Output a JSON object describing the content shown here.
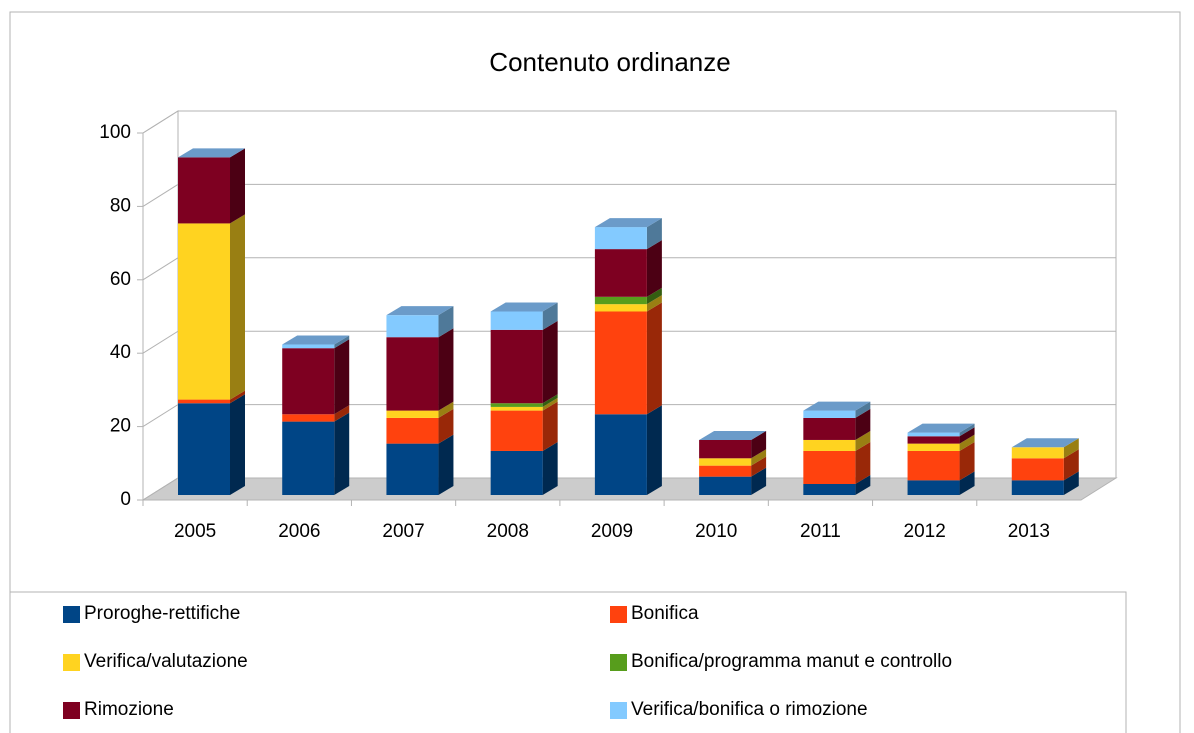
{
  "chart_data": {
    "type": "bar3d_stacked",
    "title": "Contenuto ordinanze",
    "categories": [
      "2005",
      "2006",
      "2007",
      "2008",
      "2009",
      "2010",
      "2011",
      "2012",
      "2013"
    ],
    "series": [
      {
        "name": "Proroghe-rettifiche",
        "color": "#004586",
        "values": [
          25,
          20,
          14,
          12,
          22,
          5,
          3,
          4,
          4
        ]
      },
      {
        "name": "Bonifica",
        "color": "#ff420e",
        "values": [
          1,
          2,
          7,
          11,
          28,
          3,
          9,
          8,
          6
        ]
      },
      {
        "name": "Verifica/valutazione",
        "color": "#ffd320",
        "values": [
          48,
          0,
          2,
          1,
          2,
          2,
          3,
          2,
          3
        ]
      },
      {
        "name": "Bonifica/programma manut e controllo",
        "color": "#579d1c",
        "values": [
          0,
          0,
          0,
          1,
          2,
          0,
          0,
          0,
          0
        ]
      },
      {
        "name": "Rimozione",
        "color": "#7e0021",
        "values": [
          18,
          18,
          20,
          20,
          13,
          5,
          6,
          2,
          0
        ]
      },
      {
        "name": "Verifica/bonifica o rimozione",
        "color": "#83caff",
        "values": [
          0,
          1,
          6,
          5,
          6,
          0,
          2,
          1,
          0
        ]
      }
    ],
    "ylim": [
      0,
      100
    ],
    "yticks": [
      0,
      20,
      40,
      60,
      80,
      100
    ],
    "grid": true,
    "legend": "bottom"
  }
}
